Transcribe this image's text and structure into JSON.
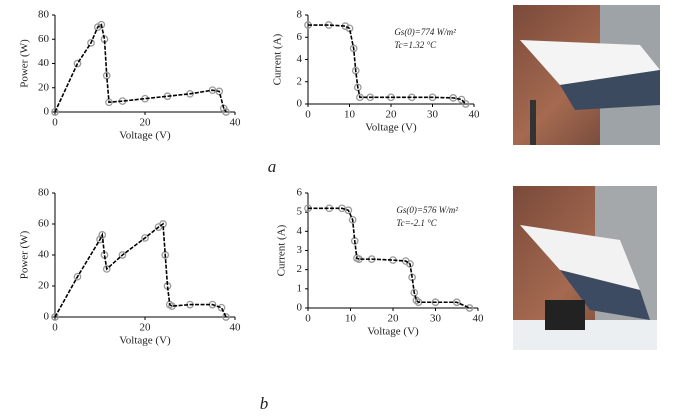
{
  "chart_data": [
    {
      "type": "line",
      "xlabel": "Voltage (V)",
      "ylabel": "Power (W)",
      "xlim": [
        0,
        40
      ],
      "xticks": [
        0,
        20,
        40
      ],
      "ylim": [
        0,
        80
      ],
      "yticks": [
        0,
        20,
        40,
        60,
        80
      ],
      "x": [
        0,
        5,
        8,
        9.5,
        10.3,
        11,
        11.5,
        12,
        15,
        20,
        25,
        30,
        35,
        36.5,
        37.5,
        38
      ],
      "series": [
        {
          "color": "#000000",
          "marker_color": "#999999",
          "values": [
            0,
            40,
            57,
            70,
            72,
            60,
            30,
            8,
            9,
            11,
            13,
            15,
            18,
            17,
            3,
            0
          ]
        }
      ]
    },
    {
      "type": "line",
      "xlabel": "Voltage (V)",
      "ylabel": "Current (A)",
      "xlim": [
        0,
        40
      ],
      "xticks": [
        0,
        10,
        20,
        30,
        40
      ],
      "ylim": [
        0,
        8
      ],
      "yticks": [
        0,
        2,
        4,
        6,
        8
      ],
      "annotations": [
        "Gs(0)=774 W/m²",
        "Tc=1.32 °C"
      ],
      "x": [
        0,
        5,
        9,
        10,
        11,
        11.5,
        12,
        12.5,
        15,
        20,
        25,
        30,
        35,
        37,
        38
      ],
      "series": [
        {
          "color": "#000000",
          "marker_color": "#999999",
          "values": [
            7.1,
            7.1,
            7.0,
            6.8,
            5,
            3,
            1.5,
            0.6,
            0.6,
            0.6,
            0.6,
            0.6,
            0.55,
            0.4,
            0
          ]
        }
      ]
    },
    {
      "type": "line",
      "xlabel": "Voltage (V)",
      "ylabel": "Power (W)",
      "xlim": [
        0,
        40
      ],
      "xticks": [
        0,
        20,
        40
      ],
      "ylim": [
        0,
        80
      ],
      "yticks": [
        0,
        20,
        40,
        60,
        80
      ],
      "x": [
        0,
        5,
        10,
        10.5,
        11,
        11.5,
        15,
        20,
        23,
        24,
        24.5,
        25,
        25.5,
        26,
        30,
        35,
        37,
        38
      ],
      "series": [
        {
          "color": "#000000",
          "marker_color": "#999999",
          "values": [
            0,
            26,
            50,
            53,
            40,
            31,
            40,
            51,
            58,
            60,
            40,
            20,
            8,
            7,
            8,
            8,
            6,
            0
          ]
        }
      ]
    },
    {
      "type": "line",
      "xlabel": "Voltage (V)",
      "ylabel": "Current (A)",
      "xlim": [
        0,
        40
      ],
      "xticks": [
        0,
        10,
        20,
        30,
        40
      ],
      "ylim": [
        0,
        6
      ],
      "yticks": [
        0,
        1,
        2,
        3,
        4,
        5,
        6
      ],
      "annotations": [
        "Gs(0)=576 W/m²",
        "Tc=-2.1 °C"
      ],
      "x": [
        0,
        5,
        8,
        9.5,
        10.5,
        11,
        11.5,
        12,
        15,
        20,
        23,
        24,
        24.5,
        25,
        25.5,
        26,
        30,
        35,
        38
      ],
      "series": [
        {
          "color": "#000000",
          "marker_color": "#999999",
          "values": [
            5.2,
            5.2,
            5.2,
            5.1,
            4.6,
            3.5,
            2.6,
            2.55,
            2.55,
            2.5,
            2.45,
            2.3,
            1.6,
            0.8,
            0.4,
            0.3,
            0.3,
            0.3,
            0
          ]
        }
      ]
    }
  ],
  "panel_labels": [
    "a",
    "b"
  ]
}
